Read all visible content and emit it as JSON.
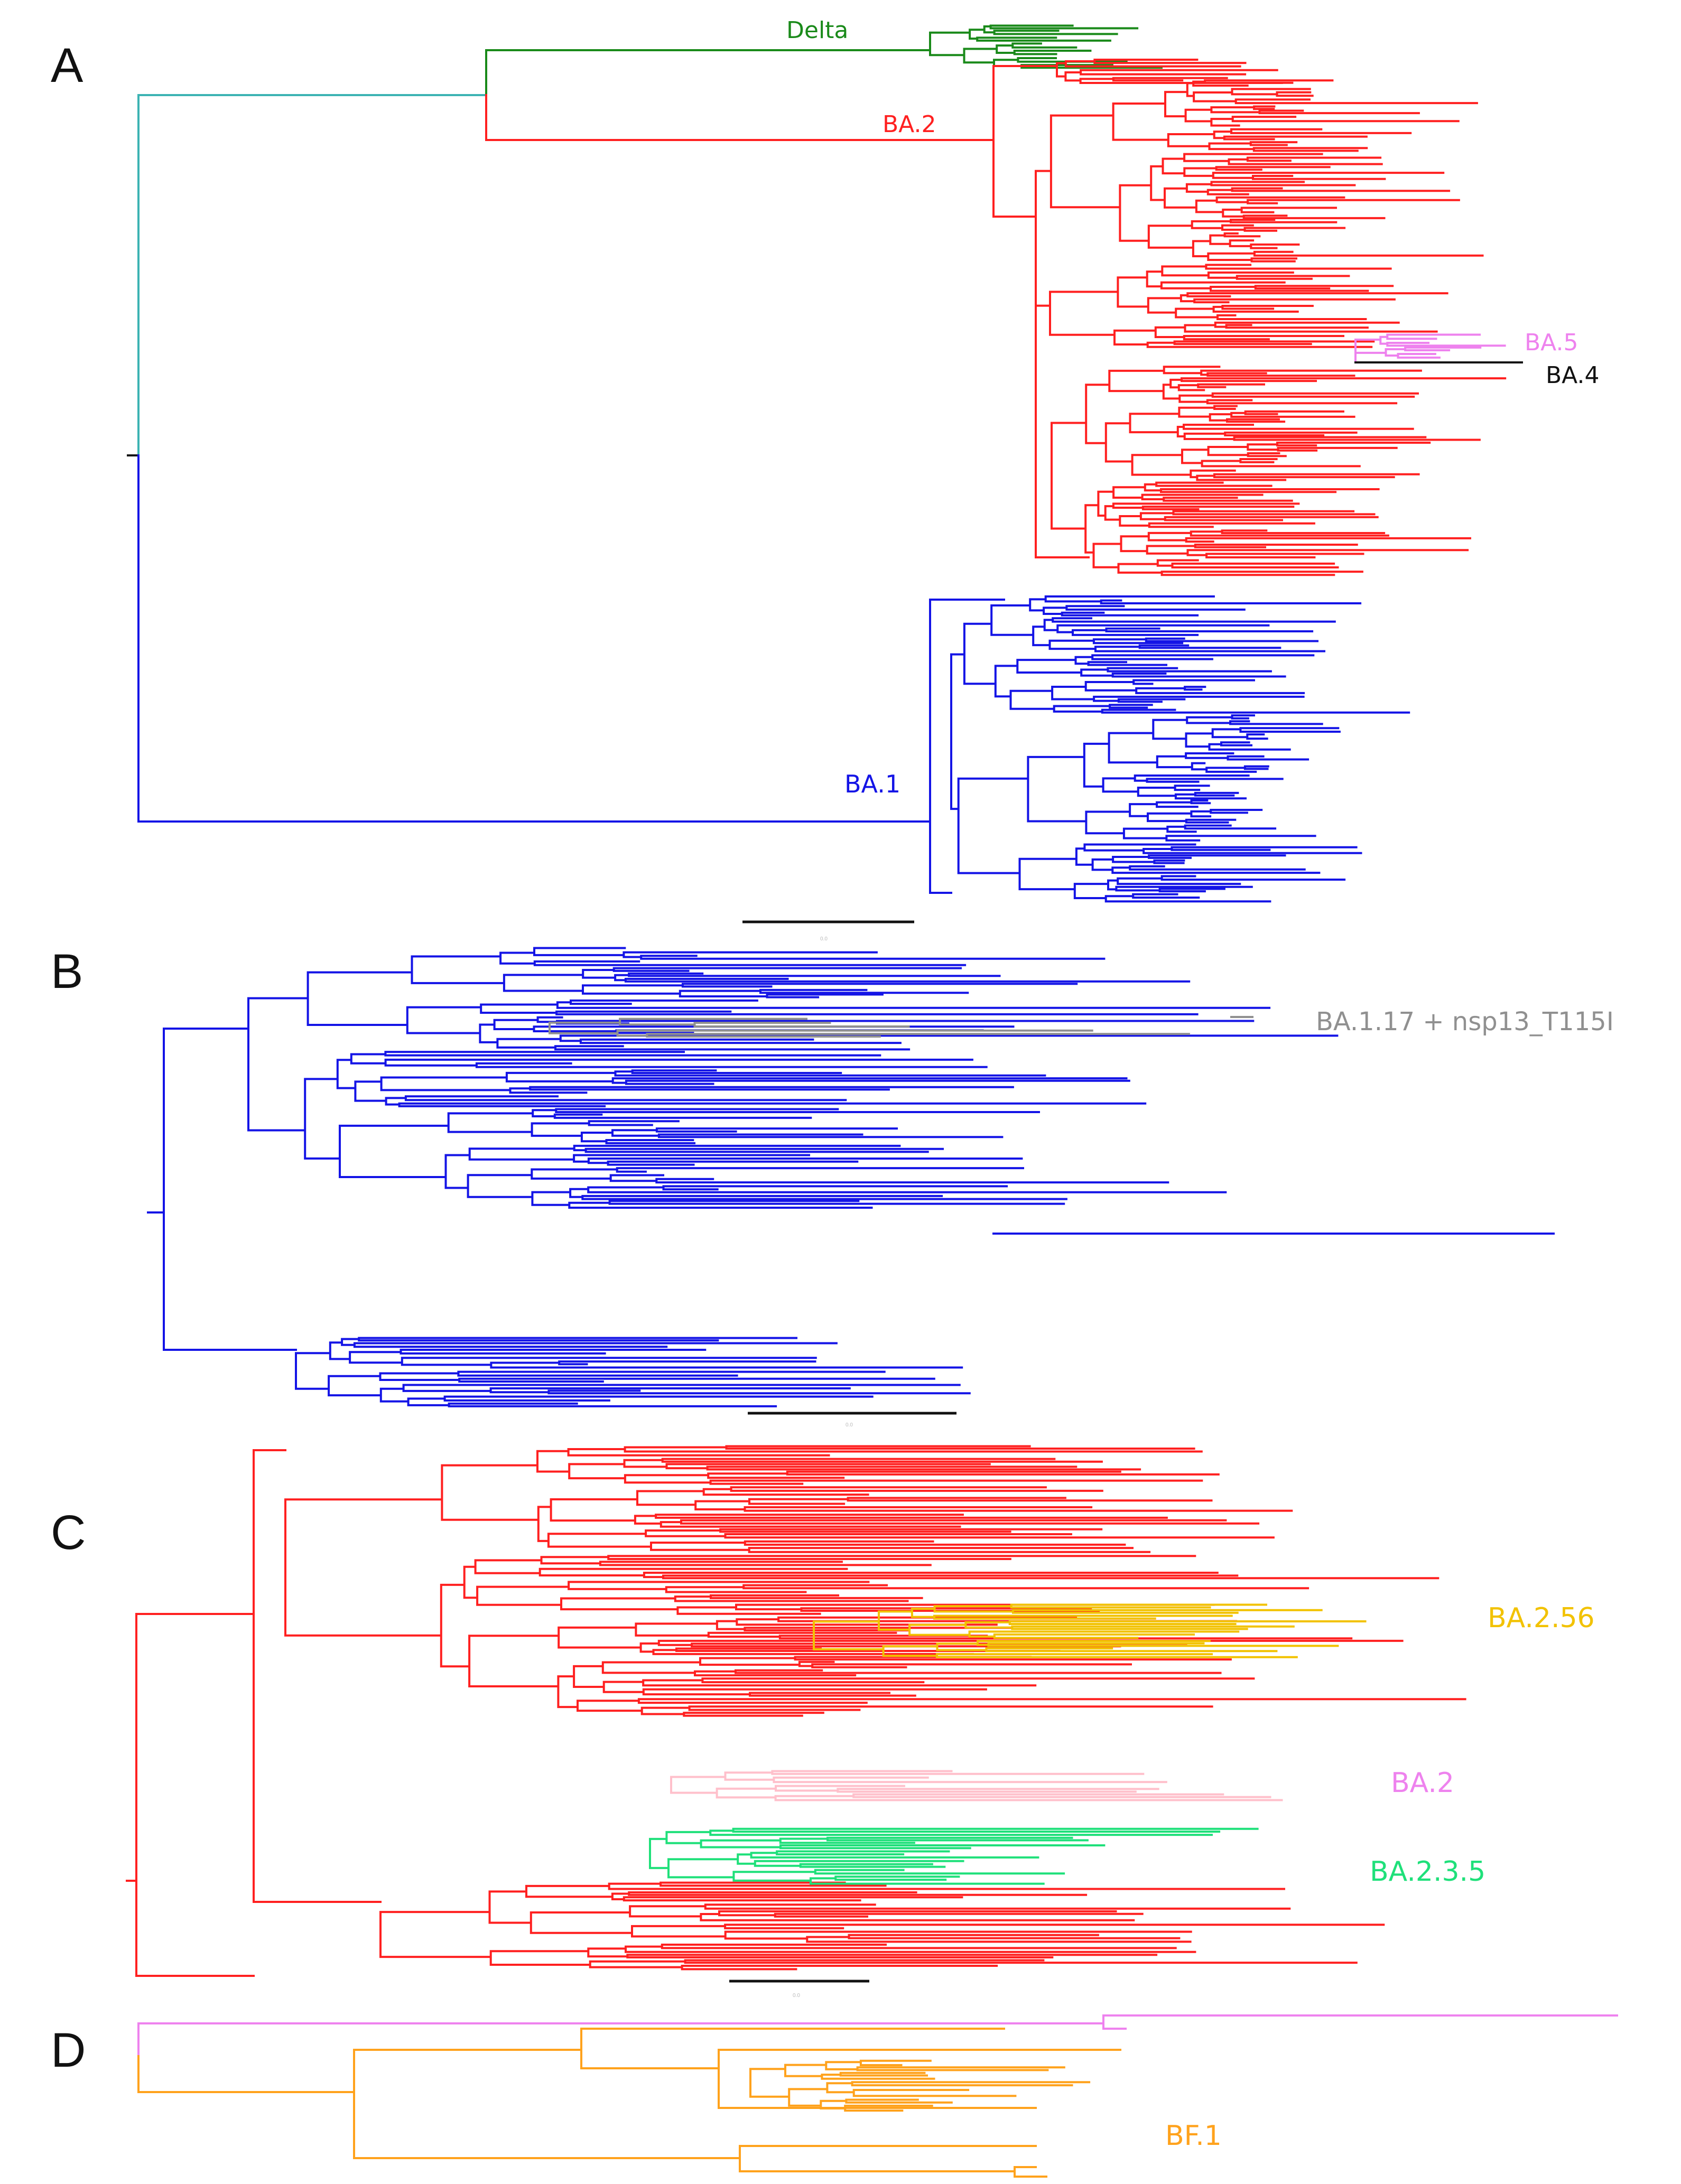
{
  "panels": [
    {
      "letter": "A",
      "clades": [
        {
          "label": "Delta",
          "color": "#1a8a1a"
        },
        {
          "label": "BA.2",
          "color": "#ff2020"
        },
        {
          "label": "BA.5",
          "color": "#ee82ee"
        },
        {
          "label": "BA.4",
          "color": "#111111"
        },
        {
          "label": "BA.1",
          "color": "#1414e6"
        }
      ],
      "stem_color": "#3cb3b3",
      "scale_bar_label": "0.0"
    },
    {
      "letter": "B",
      "clades": [
        {
          "label": "BA.1.17 + nsp13_T115I",
          "color": "#909090"
        }
      ],
      "tree_color": "#1414e6",
      "scale_bar_label": "0.0"
    },
    {
      "letter": "C",
      "clades": [
        {
          "label": "BA.2.56",
          "color": "#f2c200"
        },
        {
          "label": "BA.2",
          "color": "#ee82ee"
        },
        {
          "label": "BA.2.3.5",
          "color": "#1fe07a"
        }
      ],
      "tree_color": "#ff2020",
      "scale_bar_label": "0.0"
    },
    {
      "letter": "D",
      "clades": [
        {
          "label": "BF.1",
          "color": "#ffa21c"
        }
      ],
      "outgroup_color": "#ee82ee"
    }
  ]
}
